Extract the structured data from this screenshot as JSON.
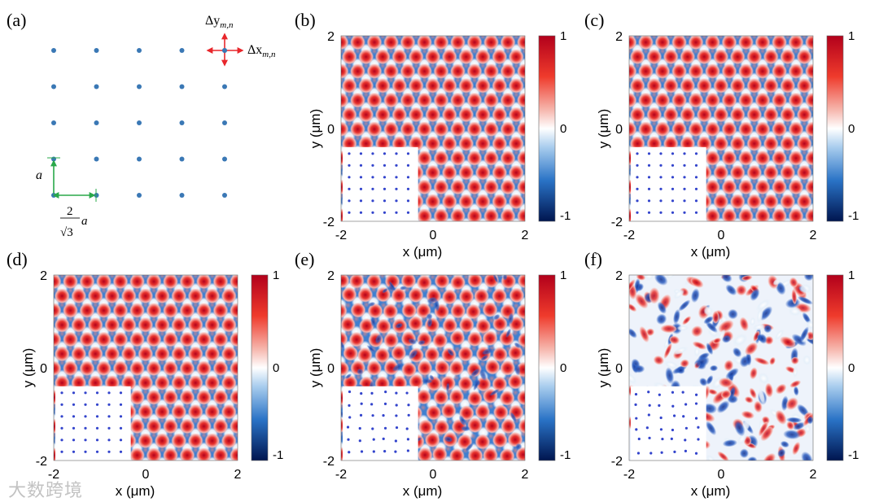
{
  "figure": {
    "panel_a": {
      "label": "(a)",
      "delta_y": "Δy",
      "delta_y_sub": "m,n",
      "delta_x": "Δx",
      "delta_x_sub": "m,n",
      "lattice_a": "a",
      "spacing_num": "2",
      "spacing_den": "√3",
      "spacing_a": "a",
      "lattice_rows": 5,
      "lattice_cols": 5,
      "dot_color": "#3a78b5",
      "arrow_color_red": "#e8262b",
      "arrow_color_green": "#2aa84a"
    },
    "panels": [
      {
        "label": "(b)",
        "pattern": "regular"
      },
      {
        "label": "(c)",
        "pattern": "regular"
      },
      {
        "label": "(d)",
        "pattern": "regular"
      },
      {
        "label": "(e)",
        "pattern": "perturbed"
      },
      {
        "label": "(f)",
        "pattern": "disordered"
      }
    ],
    "axes": {
      "xlabel": "x (μm)",
      "ylabel": "y (μm)",
      "xticks": [
        "-2",
        "0",
        "2"
      ],
      "yticks": [
        "2",
        "0",
        "-2"
      ]
    },
    "colorbar": {
      "ticks": [
        "1",
        "0",
        "-1"
      ],
      "colors": [
        "#b2001b",
        "#ef3b2c",
        "#f4a9a0",
        "#ffffff",
        "#9dc6ea",
        "#2a73c6",
        "#00154f"
      ]
    }
  },
  "watermark": "大数跨境",
  "chart_data": {
    "type": "heatmap",
    "title": "",
    "xlabel": "x (μm)",
    "ylabel": "y (μm)",
    "xlim": [
      -2,
      2
    ],
    "ylim": [
      -2,
      2
    ],
    "colorbar_range": [
      -1,
      1
    ],
    "colormap": "blue-white-red",
    "panels": [
      "(b)",
      "(c)",
      "(d)",
      "(e)",
      "(f)"
    ]
  }
}
